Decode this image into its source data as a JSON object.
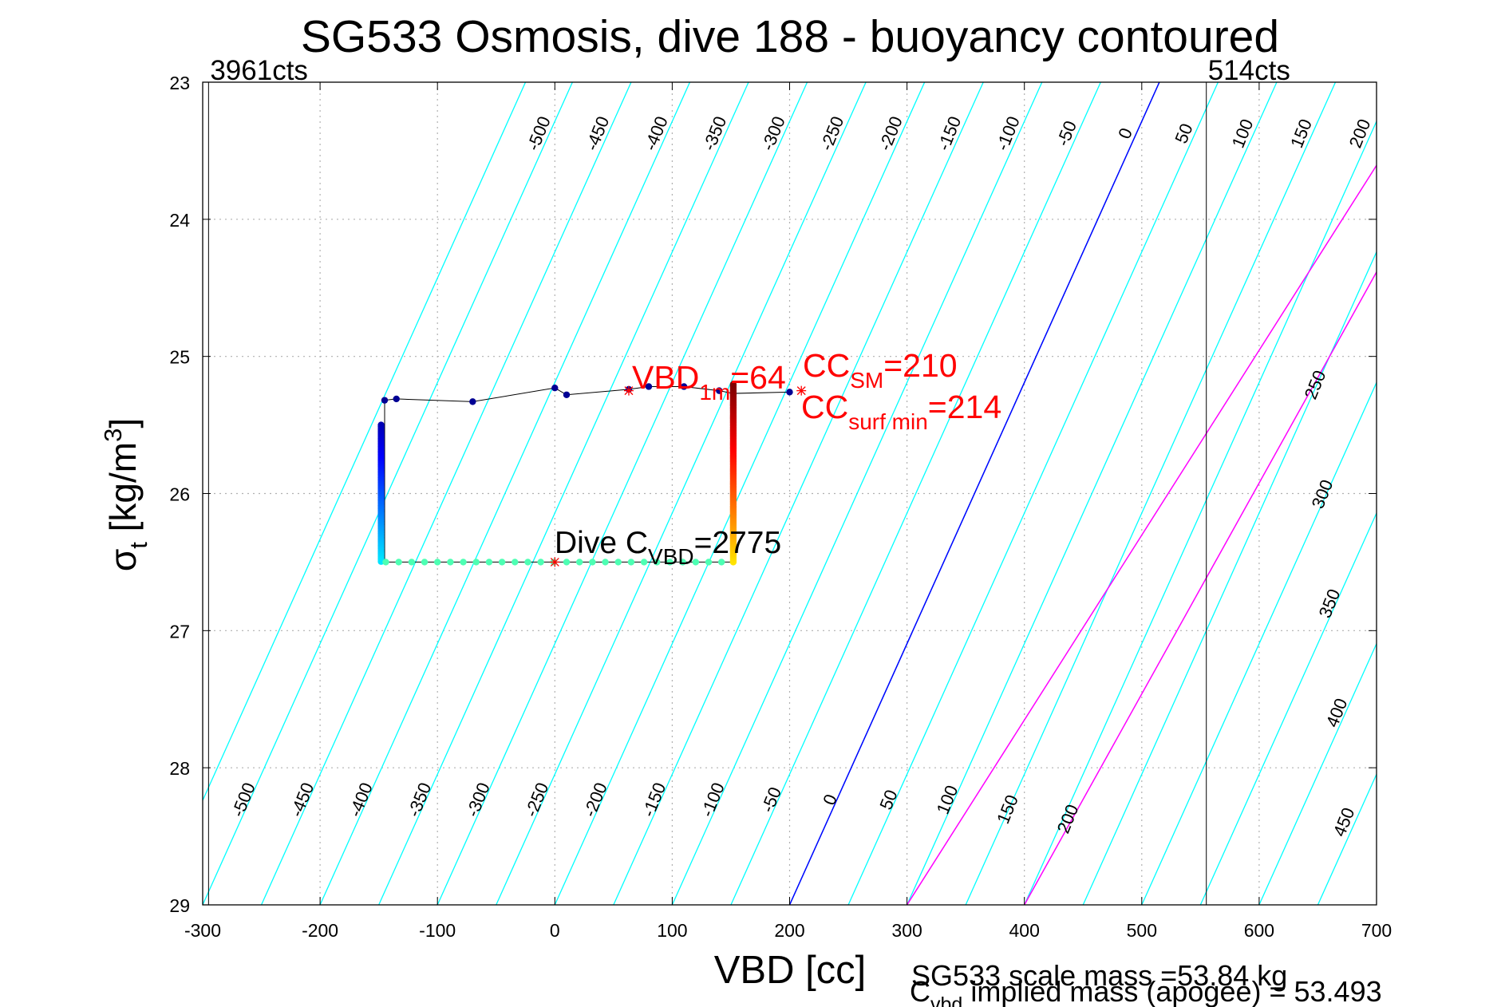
{
  "chart_data": {
    "type": "scatter",
    "title": "SG533 Osmosis, dive 188 - buoyancy contoured",
    "xlabel": "VBD [cc]",
    "ylabel_main": "σ",
    "ylabel_sub": "t",
    "ylabel_unit_pre": " [kg/m",
    "ylabel_unit_sup": "3",
    "ylabel_unit_post": "]",
    "xlim": [
      -300,
      700
    ],
    "ylim": [
      23,
      29
    ],
    "y_reversed": true,
    "xticks": [
      "-300",
      "-200",
      "-100",
      "0",
      "100",
      "200",
      "300",
      "400",
      "500",
      "600",
      "700"
    ],
    "yticks": [
      "23",
      "24",
      "25",
      "26",
      "27",
      "28",
      "29"
    ],
    "grid": true,
    "limit_lines": [
      {
        "x": -295,
        "label": "3961cts"
      },
      {
        "x": 555,
        "label": "514cts"
      }
    ],
    "buoyancy_contours": {
      "x_at_sigma23": [
        -25,
        25,
        75,
        125,
        175,
        225,
        275,
        325,
        375,
        425,
        475,
        525,
        575,
        625,
        675,
        725,
        775,
        825
      ],
      "x_at_sigma29": [
        -300,
        -250,
        -200,
        -150,
        -100,
        -50,
        0,
        50,
        100,
        150,
        200,
        250,
        300,
        350,
        400,
        450,
        500,
        550,
        600,
        650,
        700
      ],
      "top_labels": [
        "-500",
        "-450",
        "-400",
        "-350",
        "-300",
        "-250",
        "-200",
        "-150",
        "-100",
        "-50",
        "0",
        "50",
        "100",
        "150",
        "200"
      ],
      "right_labels": [
        "250",
        "300",
        "350",
        "400",
        "450"
      ],
      "bottom_labels": [
        "-500",
        "-450",
        "-400",
        "-350",
        "-300",
        "-250",
        "-200",
        "-150",
        "-100",
        "-50",
        "0",
        "50",
        "100",
        "150",
        "200"
      ],
      "zero_line": {
        "x_at_sigma23": 515,
        "x_at_sigma29": 200
      },
      "positive_lines": [
        {
          "x_at_sigma23": 745,
          "x_at_sigma29": 300
        },
        {
          "x_at_sigma23": 790,
          "x_at_sigma29": 400
        }
      ]
    },
    "dive_track": [
      {
        "x": -145,
        "y": 25.32
      },
      {
        "x": -135,
        "y": 25.31
      },
      {
        "x": -70,
        "y": 25.33
      },
      {
        "x": 0,
        "y": 25.23
      },
      {
        "x": 10,
        "y": 25.28
      },
      {
        "x": 63,
        "y": 25.24
      },
      {
        "x": 80,
        "y": 25.22
      },
      {
        "x": 110,
        "y": 25.22
      },
      {
        "x": 140,
        "y": 25.25
      },
      {
        "x": 152,
        "y": 25.27
      },
      {
        "x": 200,
        "y": 25.26
      }
    ],
    "turn_point": {
      "x": -150,
      "y": 26.5
    },
    "end_point": {
      "x": 150,
      "y": 26.5
    },
    "apogee_y": 26.5,
    "climb_x": 152,
    "descent_x": -148,
    "annotations": {
      "vbd_1m_main": "VBD",
      "vbd_1m_sub": "1m",
      "vbd_1m_value": "=64",
      "cc_sm_main": "CC",
      "cc_sm_sub": "SM",
      "cc_sm_value": "=210",
      "cc_surf_main": "CC",
      "cc_surf_sub": "surf min",
      "cc_surf_value": "=214",
      "cvbd_main": "Dive C",
      "cvbd_sub": "VBD",
      "cvbd_value": "=2775",
      "marker_vbd_1m_x": 63,
      "marker_cc_sm_x": 210,
      "marker_cvbd_x": 0
    },
    "footer": {
      "scale_mass": "SG533 scale mass =53.84 kg",
      "implied_main": "C",
      "implied_sub": "vbd",
      "implied_text": " implied mass (apogee) = 53.493"
    },
    "colors": {
      "contour": "#00ffff",
      "zero_contour": "#0000ff",
      "positive_contour": "#ff00ff",
      "grid": "#b0b0b0",
      "track_line": "#000000",
      "annotation": "#ff0000"
    }
  }
}
